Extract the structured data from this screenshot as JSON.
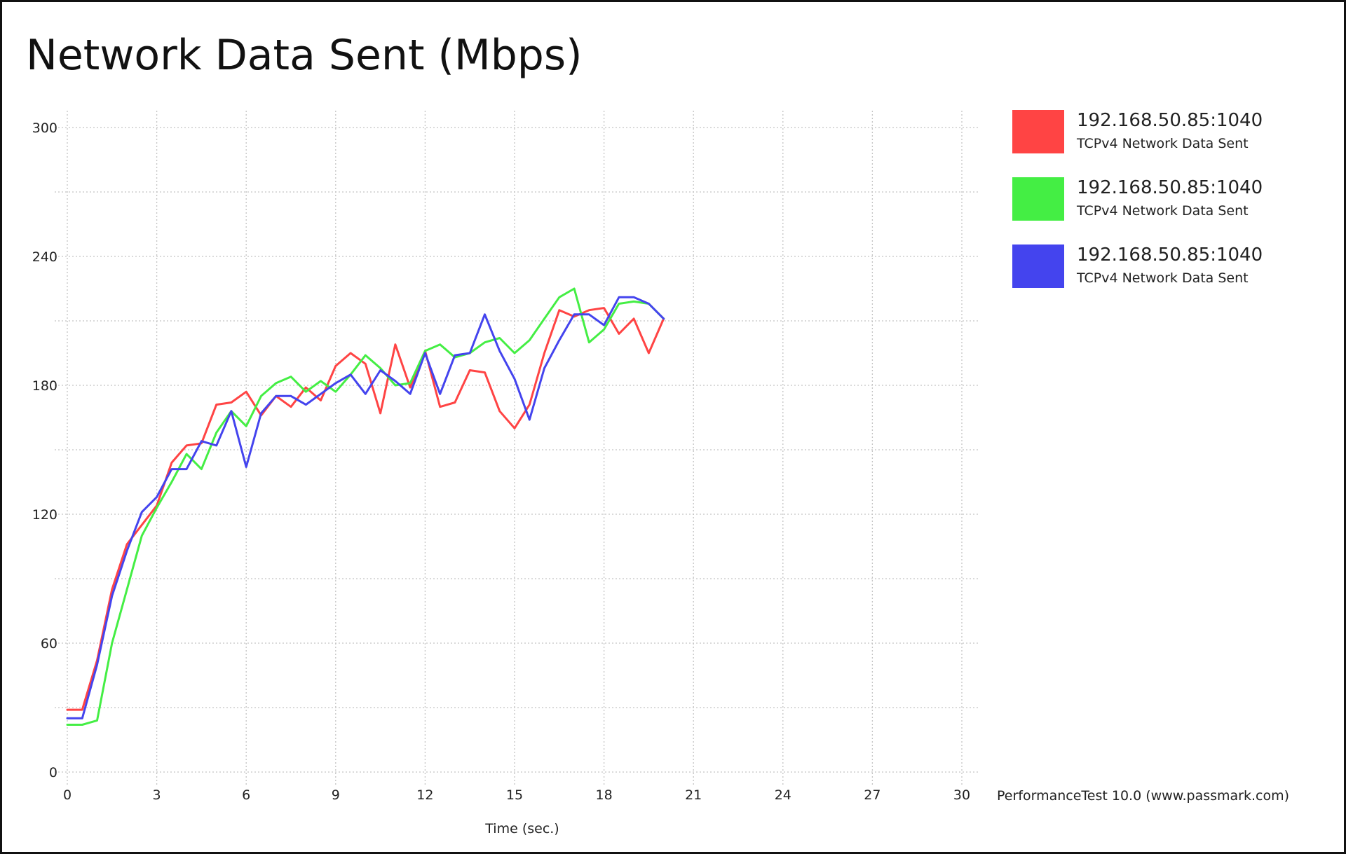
{
  "chart_data": {
    "type": "line",
    "title": "Network Data Sent (Mbps)",
    "xlabel": "Time (sec.)",
    "ylabel": "",
    "xlim": [
      0,
      30
    ],
    "ylim": [
      0,
      300
    ],
    "x_ticks": [
      0,
      3,
      6,
      9,
      12,
      15,
      18,
      21,
      24,
      27,
      30
    ],
    "y_ticks": [
      0,
      60,
      120,
      180,
      240,
      300
    ],
    "grid": true,
    "legend_position": "right",
    "series": [
      {
        "name": "192.168.50.85:1040",
        "description": "TCPv4 Network Data Sent",
        "color": "#ff4444",
        "x": [
          0,
          0.5,
          1,
          1.5,
          2,
          2.5,
          3,
          3.5,
          4,
          4.5,
          5,
          5.5,
          6,
          6.5,
          7,
          7.5,
          8,
          8.5,
          9,
          9.5,
          10,
          10.5,
          11,
          11.5,
          12,
          12.5,
          13,
          13.5,
          14,
          14.5,
          15,
          15.5,
          16,
          16.5,
          17,
          17.5,
          18,
          18.5,
          19,
          19.5,
          20
        ],
        "values": [
          29,
          29,
          52,
          85,
          106,
          115,
          124,
          144,
          152,
          153,
          171,
          172,
          177,
          166,
          175,
          170,
          179,
          173,
          189,
          195,
          190,
          167,
          199,
          179,
          196,
          170,
          172,
          187,
          186,
          168,
          160,
          171,
          195,
          215,
          212,
          215,
          216,
          204,
          211,
          195,
          211
        ]
      },
      {
        "name": "192.168.50.85:1040",
        "description": "TCPv4 Network Data Sent",
        "color": "#44ee44",
        "x": [
          0,
          0.5,
          1,
          1.5,
          2,
          2.5,
          3,
          3.5,
          4,
          4.5,
          5,
          5.5,
          6,
          6.5,
          7,
          7.5,
          8,
          8.5,
          9,
          9.5,
          10,
          10.5,
          11,
          11.5,
          12,
          12.5,
          13,
          13.5,
          14,
          14.5,
          15,
          15.5,
          16,
          16.5,
          17,
          17.5,
          18,
          18.5,
          19,
          19.5,
          20
        ],
        "values": [
          22,
          22,
          24,
          60,
          85,
          110,
          123,
          135,
          148,
          141,
          158,
          168,
          161,
          175,
          181,
          184,
          177,
          182,
          177,
          185,
          194,
          188,
          180,
          181,
          196,
          199,
          193,
          195,
          200,
          202,
          195,
          201,
          211,
          221,
          225,
          200,
          206,
          218,
          219,
          218,
          211
        ]
      },
      {
        "name": "192.168.50.85:1040",
        "description": "TCPv4 Network Data Sent",
        "color": "#4444ee",
        "x": [
          0,
          0.5,
          1,
          1.5,
          2,
          2.5,
          3,
          3.5,
          4,
          4.5,
          5,
          5.5,
          6,
          6.5,
          7,
          7.5,
          8,
          8.5,
          9,
          9.5,
          10,
          10.5,
          11,
          11.5,
          12,
          12.5,
          13,
          13.5,
          14,
          14.5,
          15,
          15.5,
          16,
          16.5,
          17,
          17.5,
          18,
          18.5,
          19,
          19.5,
          20
        ],
        "values": [
          25,
          25,
          50,
          82,
          103,
          121,
          128,
          141,
          141,
          154,
          152,
          168,
          142,
          167,
          175,
          175,
          171,
          176,
          181,
          185,
          176,
          187,
          182,
          176,
          195,
          176,
          194,
          195,
          213,
          196,
          183,
          164,
          188,
          201,
          213,
          213,
          208,
          221,
          221,
          218,
          211
        ]
      }
    ]
  },
  "credit": "PerformanceTest 10.0 (www.passmark.com)"
}
